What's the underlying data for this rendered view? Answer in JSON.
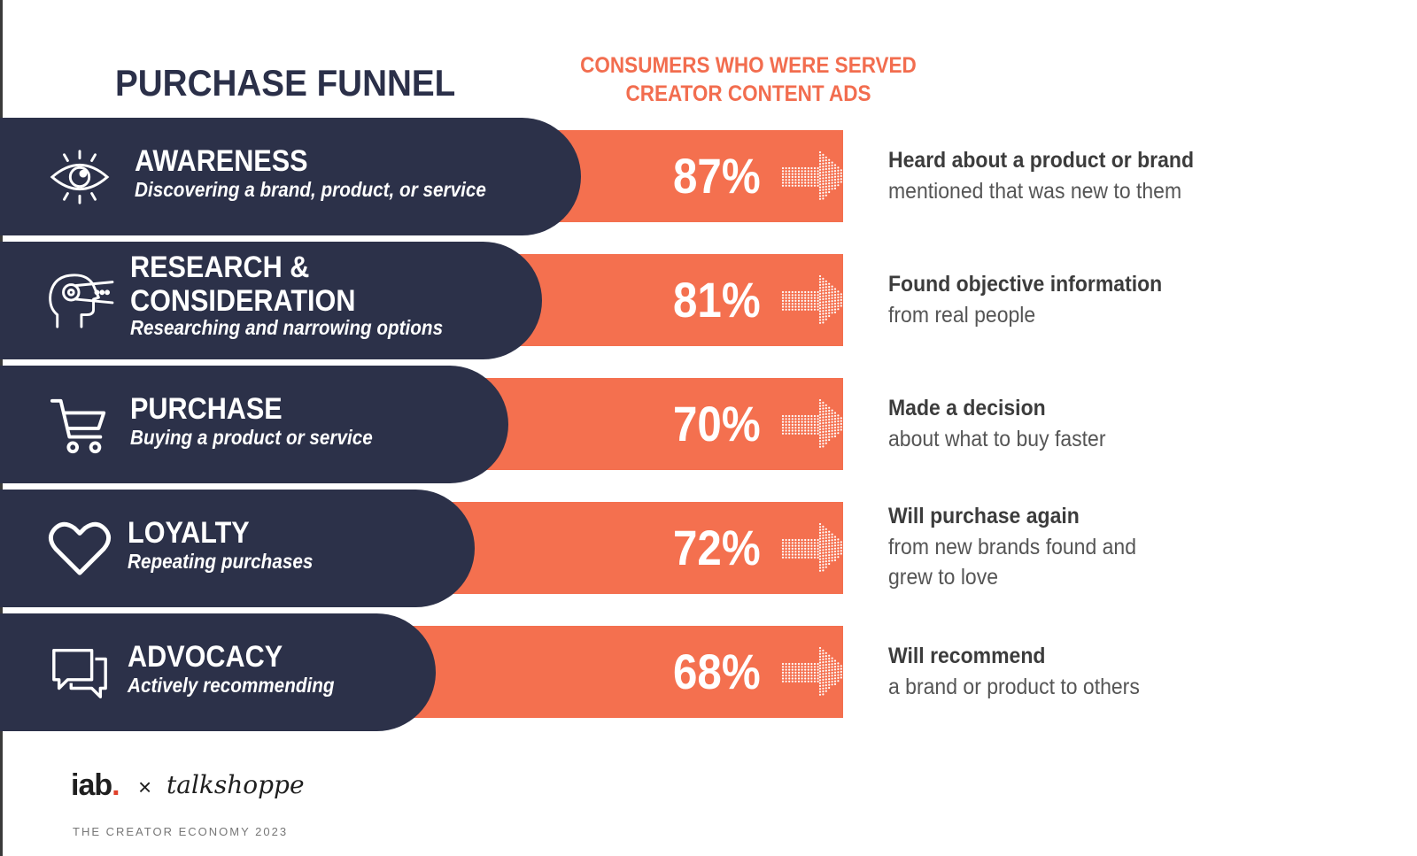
{
  "title": "PURCHASE FUNNEL",
  "column_header": [
    "CONSUMERS WHO WERE SERVED",
    "CREATOR CONTENT ADS"
  ],
  "colors": {
    "navy": "#2c3149",
    "orange": "#f4704f",
    "header_orange": "#f26d4f"
  },
  "stages": [
    {
      "name_lines": [
        "AWARENESS"
      ],
      "desc": "Discovering a brand, product, or service",
      "icon": "eye-icon",
      "pct_label": "87%",
      "outcome_strong": "Heard about a product or brand",
      "outcome_light": [
        "mentioned that was new to them"
      ]
    },
    {
      "name_lines": [
        "RESEARCH &",
        "CONSIDERATION"
      ],
      "desc": "Researching and narrowing options",
      "icon": "head-gear-icon",
      "pct_label": "81%",
      "outcome_strong": "Found objective information",
      "outcome_light": [
        "from real people"
      ]
    },
    {
      "name_lines": [
        "PURCHASE"
      ],
      "desc": "Buying a product or service",
      "icon": "cart-icon",
      "pct_label": "70%",
      "outcome_strong": "Made a decision",
      "outcome_light": [
        "about what to buy faster"
      ]
    },
    {
      "name_lines": [
        "LOYALTY"
      ],
      "desc": "Repeating purchases",
      "icon": "heart-icon",
      "pct_label": "72%",
      "outcome_strong": "Will purchase again",
      "outcome_light": [
        "from new brands found and",
        "grew to love"
      ]
    },
    {
      "name_lines": [
        "ADVOCACY"
      ],
      "desc": "Actively recommending",
      "icon": "chat-bubbles-icon",
      "pct_label": "68%",
      "outcome_strong": "Will recommend",
      "outcome_light": [
        "a brand or product to others"
      ]
    }
  ],
  "chart_data": {
    "type": "bar",
    "categories": [
      "AWARENESS",
      "RESEARCH & CONSIDERATION",
      "PURCHASE",
      "LOYALTY",
      "ADVOCACY"
    ],
    "values": [
      87,
      81,
      70,
      72,
      68
    ],
    "title": "",
    "xlabel": "",
    "ylabel": ""
  },
  "footer": {
    "brand_iab": "iab",
    "brand_dot": ".",
    "times": "×",
    "brand_partner": "talkshoppe",
    "subtitle": "THE CREATOR ECONOMY 2023"
  }
}
